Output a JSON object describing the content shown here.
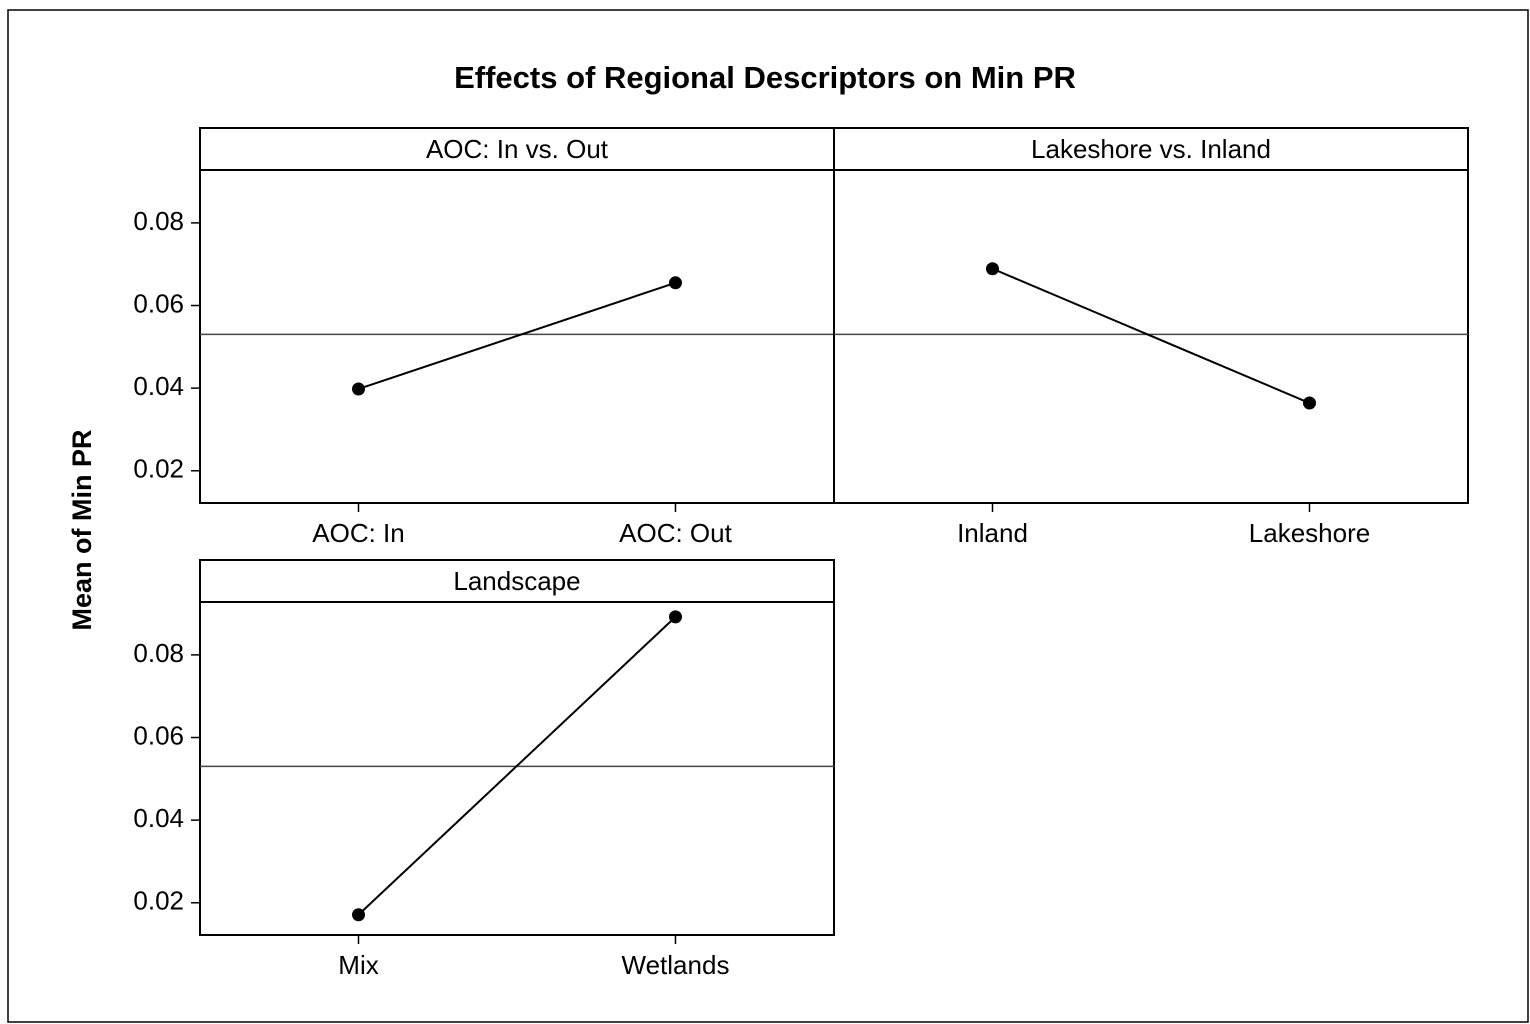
{
  "chart_data": {
    "type": "line",
    "title": "Effects of Regional Descriptors on Min PR",
    "ylabel": "Mean of Min PR",
    "ylim": [
      0.0122,
      0.0928
    ],
    "yticks": [
      0.02,
      0.04,
      0.06,
      0.08
    ],
    "reference_line": 0.053,
    "color": "#000000",
    "panels": [
      {
        "title": "AOC: In vs. Out",
        "categories": [
          "AOC: In",
          "AOC: Out"
        ],
        "values": [
          0.0398,
          0.0655
        ]
      },
      {
        "title": "Lakeshore vs. Inland",
        "categories": [
          "Inland",
          "Lakeshore"
        ],
        "values": [
          0.0689,
          0.0364
        ]
      },
      {
        "title": "Landscape",
        "categories": [
          "Mix",
          "Wetlands"
        ],
        "values": [
          0.0171,
          0.0892
        ]
      }
    ]
  }
}
